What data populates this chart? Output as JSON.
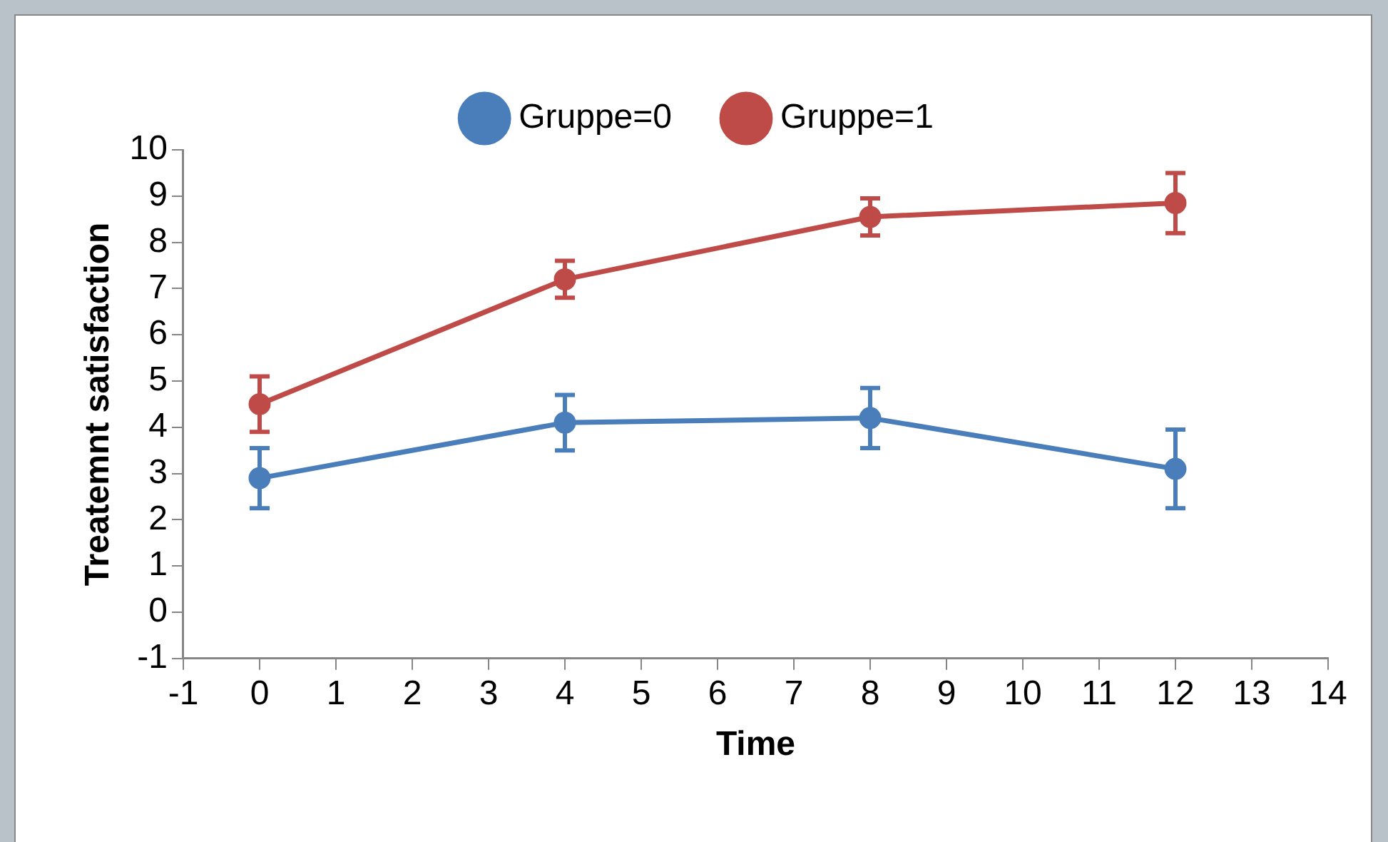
{
  "chart_data": {
    "type": "line",
    "xlabel": "Time",
    "ylabel": "Treatemnt satisfaction",
    "x": [
      0,
      4,
      8,
      12
    ],
    "xlim": [
      -1,
      14
    ],
    "xticks": [
      -1,
      0,
      1,
      2,
      3,
      4,
      5,
      6,
      7,
      8,
      9,
      10,
      11,
      12,
      13,
      14
    ],
    "ylim": [
      -1,
      10
    ],
    "yticks": [
      -1,
      0,
      1,
      2,
      3,
      4,
      5,
      6,
      7,
      8,
      9,
      10
    ],
    "series": [
      {
        "name": "Gruppe=0",
        "color": "#4a7ebb",
        "values": [
          2.9,
          4.1,
          4.2,
          3.1
        ],
        "errors": [
          0.65,
          0.6,
          0.65,
          0.85
        ]
      },
      {
        "name": "Gruppe=1",
        "color": "#be4b48",
        "values": [
          4.5,
          7.2,
          8.55,
          8.85
        ],
        "errors": [
          0.6,
          0.4,
          0.4,
          0.65
        ]
      }
    ],
    "grid": false,
    "legend": "top",
    "marker": "circle",
    "line_style": "solid"
  }
}
